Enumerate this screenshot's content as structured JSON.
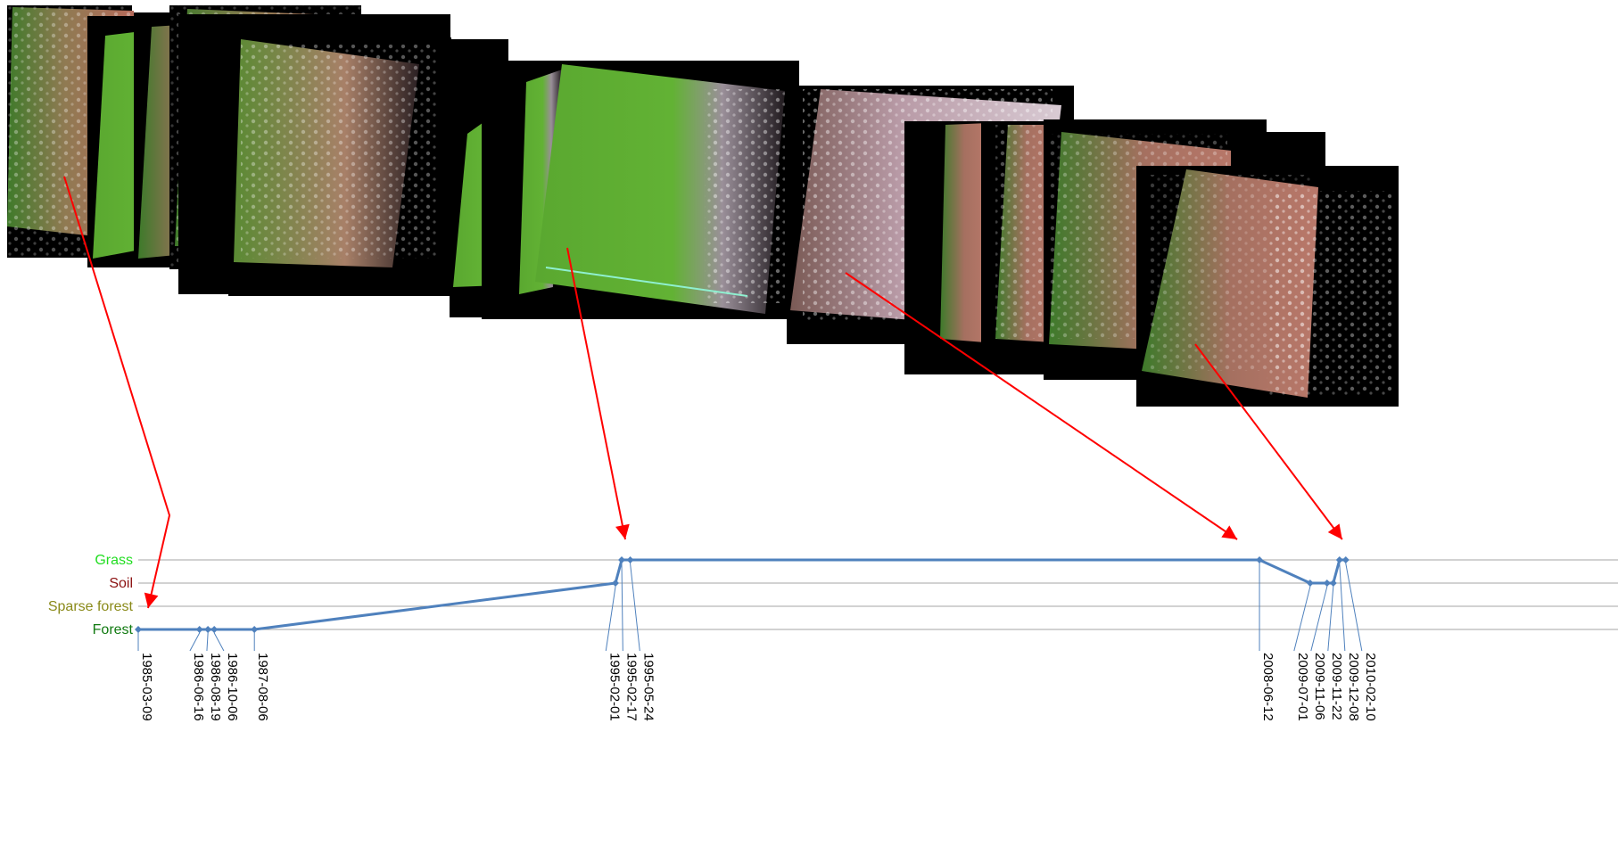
{
  "chart_data": {
    "type": "line",
    "title": "",
    "xlabel": "",
    "ylabel": "",
    "categories": [
      "Forest",
      "Sparse forest",
      "Soil",
      "Grass"
    ],
    "category_colors": [
      "#117a11",
      "#8a8a1a",
      "#8b1010",
      "#22dd22"
    ],
    "series": [
      {
        "color": "#4f81bd",
        "points": [
          {
            "x": "1985-03-09",
            "y": "Forest"
          },
          {
            "x": "1986-06-16",
            "y": "Forest"
          },
          {
            "x": "1986-08-19",
            "y": "Forest"
          },
          {
            "x": "1986-10-06",
            "y": "Forest"
          },
          {
            "x": "1987-08-06",
            "y": "Forest"
          },
          {
            "x": "1995-02-01",
            "y": "Soil"
          },
          {
            "x": "1995-02-17",
            "y": "Grass"
          },
          {
            "x": "1995-05-24",
            "y": "Grass"
          },
          {
            "x": "2008-06-12",
            "y": "Grass"
          },
          {
            "x": "2009-07-01",
            "y": "Soil"
          },
          {
            "x": "2009-11-06",
            "y": "Soil"
          },
          {
            "x": "2009-11-22",
            "y": "Soil"
          },
          {
            "x": "2009-12-08",
            "y": "Grass"
          },
          {
            "x": "2010-02-10",
            "y": "Grass"
          }
        ]
      }
    ],
    "grid": true,
    "legend": "none",
    "annotation_color": "#ff0000",
    "image_annotations": [
      "1985-03-09",
      "1995-02-17",
      "2008-06-12",
      "2009-12-08"
    ]
  }
}
